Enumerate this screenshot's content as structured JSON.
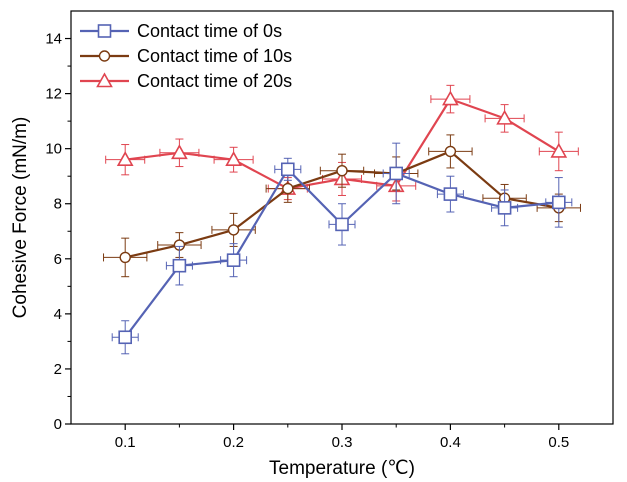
{
  "chart_data": {
    "type": "line",
    "xlabel": "Temperature (℃)",
    "ylabel": "Cohesive Force (mN/m)",
    "xlim": [
      0.05,
      0.55
    ],
    "ylim": [
      0,
      15
    ],
    "x_ticks": [
      0.1,
      0.2,
      0.3,
      0.4,
      0.5
    ],
    "x_tick_labels": [
      "0.1",
      "0.2",
      "0.3",
      "0.4",
      "0.5"
    ],
    "y_ticks": [
      0,
      2,
      4,
      6,
      8,
      10,
      12,
      14
    ],
    "y_tick_labels": [
      "0",
      "2",
      "4",
      "6",
      "8",
      "10",
      "12",
      "14"
    ],
    "grid": false,
    "legend_position": "top-left",
    "x": [
      0.1,
      0.15,
      0.2,
      0.25,
      0.3,
      0.35,
      0.4,
      0.45,
      0.5
    ],
    "series": [
      {
        "name": "Contact time of 0s",
        "marker": "square",
        "color": "#5563b4",
        "values": [
          3.15,
          5.75,
          5.95,
          9.25,
          7.25,
          9.1,
          8.35,
          7.85,
          8.05
        ],
        "y_err": [
          0.6,
          0.7,
          0.6,
          0.4,
          0.75,
          1.1,
          0.65,
          0.65,
          0.9
        ],
        "x_err": [
          0.012,
          0.012,
          0.012,
          0.012,
          0.012,
          0.012,
          0.012,
          0.012,
          0.012
        ]
      },
      {
        "name": "Contact time of 10s",
        "marker": "circle",
        "color": "#7b3b12",
        "values": [
          6.05,
          6.5,
          7.05,
          8.55,
          9.2,
          9.1,
          9.9,
          8.2,
          7.85
        ],
        "y_err": [
          0.7,
          0.45,
          0.6,
          0.5,
          0.6,
          0.6,
          0.6,
          0.5,
          0.5
        ],
        "x_err": [
          0.02,
          0.02,
          0.02,
          0.02,
          0.02,
          0.02,
          0.02,
          0.02,
          0.02
        ]
      },
      {
        "name": "Contact time of 20s",
        "marker": "triangle",
        "color": "#e04550",
        "values": [
          9.6,
          9.85,
          9.6,
          8.55,
          8.9,
          8.65,
          11.8,
          11.1,
          9.9
        ],
        "y_err": [
          0.55,
          0.5,
          0.45,
          0.4,
          0.6,
          0.55,
          0.5,
          0.5,
          0.7
        ],
        "x_err": [
          0.018,
          0.018,
          0.018,
          0.018,
          0.018,
          0.018,
          0.018,
          0.018,
          0.018
        ]
      }
    ]
  }
}
